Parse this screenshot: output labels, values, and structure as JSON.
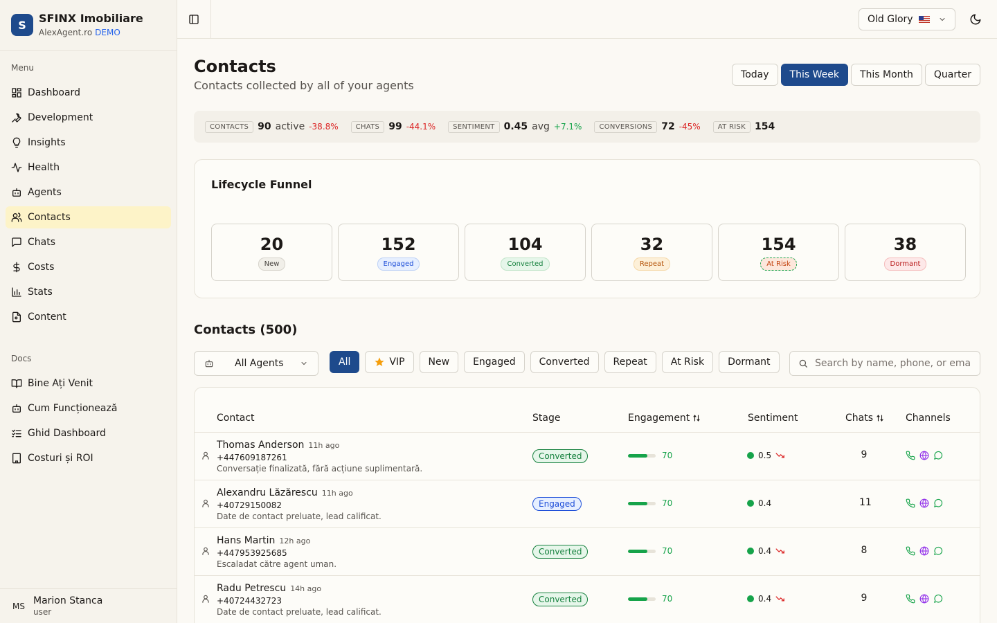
{
  "brand": {
    "logo_letter": "S",
    "title": "SFINX Imobiliare",
    "subtitle": "AlexAgent.ro",
    "badge": "DEMO"
  },
  "sidebar": {
    "menu_label": "Menu",
    "items": [
      {
        "label": "Dashboard",
        "icon": "dashboard-icon"
      },
      {
        "label": "Development",
        "icon": "wrench-icon"
      },
      {
        "label": "Insights",
        "icon": "lightbulb-icon"
      },
      {
        "label": "Health",
        "icon": "pulse-icon"
      },
      {
        "label": "Agents",
        "icon": "bot-icon"
      },
      {
        "label": "Contacts",
        "icon": "users-icon",
        "active": true
      },
      {
        "label": "Chats",
        "icon": "chat-icon"
      },
      {
        "label": "Costs",
        "icon": "dollar-icon"
      },
      {
        "label": "Stats",
        "icon": "bar-chart-icon"
      },
      {
        "label": "Content",
        "icon": "file-icon"
      }
    ],
    "docs_label": "Docs",
    "docs": [
      {
        "label": "Bine Ați Venit",
        "icon": "book-icon"
      },
      {
        "label": "Cum Funcționează",
        "icon": "bot-icon"
      },
      {
        "label": "Ghid Dashboard",
        "icon": "list-check-icon"
      },
      {
        "label": "Costuri și ROI",
        "icon": "building-icon"
      }
    ],
    "user": {
      "initials": "MS",
      "name": "Marion Stanca",
      "role": "user"
    }
  },
  "topbar": {
    "brand_select": "Old Glory"
  },
  "page": {
    "title": "Contacts",
    "subtitle": "Contacts collected by all of your agents",
    "periods": [
      "Today",
      "This Week",
      "This Month",
      "Quarter"
    ],
    "active_period": "This Week"
  },
  "kpis": [
    {
      "label": "CONTACTS",
      "value": "90",
      "unit": "active",
      "delta": "-38.8%",
      "trend": "neg"
    },
    {
      "label": "CHATS",
      "value": "99",
      "unit": "",
      "delta": "-44.1%",
      "trend": "neg"
    },
    {
      "label": "SENTIMENT",
      "value": "0.45",
      "unit": "avg",
      "delta": "+7.1%",
      "trend": "pos"
    },
    {
      "label": "CONVERSIONS",
      "value": "72",
      "unit": "",
      "delta": "-45%",
      "trend": "neg"
    },
    {
      "label": "AT RISK",
      "value": "154",
      "unit": "",
      "delta": "",
      "trend": ""
    }
  ],
  "funnel": {
    "title": "Lifecycle Funnel",
    "stages": [
      {
        "count": "20",
        "label": "New",
        "style": "b-new"
      },
      {
        "count": "152",
        "label": "Engaged",
        "style": "b-eng"
      },
      {
        "count": "104",
        "label": "Converted",
        "style": "b-conv"
      },
      {
        "count": "32",
        "label": "Repeat",
        "style": "b-rep"
      },
      {
        "count": "154",
        "label": "At Risk",
        "style": "b-risk"
      },
      {
        "count": "38",
        "label": "Dormant",
        "style": "b-dorm"
      }
    ]
  },
  "contacts": {
    "title": "Contacts (500)",
    "agent_filter": "All Agents",
    "filters": [
      "All",
      "VIP",
      "New",
      "Engaged",
      "Converted",
      "Repeat",
      "At Risk",
      "Dormant"
    ],
    "active_filter": "All",
    "search_placeholder": "Search by name, phone, or email",
    "columns": [
      "Contact",
      "Stage",
      "Engagement",
      "Sentiment",
      "Chats",
      "Channels"
    ],
    "rows": [
      {
        "name": "Thomas Anderson",
        "ago": "11h ago",
        "phone": "+447609187261",
        "note": "Conversație finalizată, fără acțiune suplimentară.",
        "stage": "Converted",
        "stage_style": "b-conv",
        "engagement": 70,
        "sentiment": "0.5",
        "trend_down": true,
        "chats": "9"
      },
      {
        "name": "Alexandru Lăzărescu",
        "ago": "11h ago",
        "phone": "+40729150082",
        "note": "Date de contact preluate, lead calificat.",
        "stage": "Engaged",
        "stage_style": "b-eng",
        "engagement": 70,
        "sentiment": "0.4",
        "trend_down": false,
        "chats": "11"
      },
      {
        "name": "Hans Martin",
        "ago": "12h ago",
        "phone": "+447953925685",
        "note": "Escaladat către agent uman.",
        "stage": "Converted",
        "stage_style": "b-conv",
        "engagement": 70,
        "sentiment": "0.4",
        "trend_down": true,
        "chats": "8"
      },
      {
        "name": "Radu Petrescu",
        "ago": "14h ago",
        "phone": "+40724432723",
        "note": "Date de contact preluate, lead calificat.",
        "stage": "Converted",
        "stage_style": "b-conv",
        "engagement": 70,
        "sentiment": "0.4",
        "trend_down": true,
        "chats": "9"
      }
    ]
  },
  "colors": {
    "accent": "#1e4a8c",
    "active_nav": "#fdf3c8",
    "positive": "#16a34a",
    "negative": "#dc2626"
  }
}
